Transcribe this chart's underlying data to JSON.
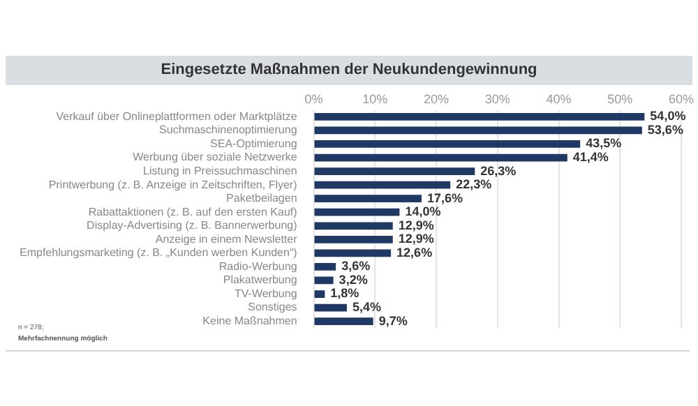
{
  "chart_data": {
    "type": "bar",
    "orientation": "horizontal",
    "title": "Eingesetzte Maßnahmen der Neukundengewinnung",
    "categories": [
      "Verkauf über Onlineplattformen oder Marktplätze",
      "Suchmaschinenoptimierung",
      "SEA-Optimierung",
      "Werbung über soziale Netzwerke",
      "Listung in Preissuchmaschinen",
      "Printwerbung (z. B. Anzeige in Zeitschriften, Flyer)",
      "Paketbeilagen",
      "Rabattaktionen (z. B. auf den ersten Kauf)",
      "Display-Advertising (z. B. Bannerwerbung)",
      "Anzeige in einem Newsletter",
      "Empfehlungsmarketing (z. B. „Kunden werben Kunden“)",
      "Radio-Werbung",
      "Plakatwerbung",
      "TV-Werbung",
      "Sonstiges",
      "Keine Maßnahmen"
    ],
    "values": [
      54.0,
      53.6,
      43.5,
      41.4,
      26.3,
      22.3,
      17.6,
      14.0,
      12.9,
      12.9,
      12.6,
      3.6,
      3.2,
      1.8,
      5.4,
      9.7
    ],
    "value_labels": [
      "54,0%",
      "53,6%",
      "43,5%",
      "41,4%",
      "26,3%",
      "22,3%",
      "17,6%",
      "14,0%",
      "12,9%",
      "12,9%",
      "12,6%",
      "3,6%",
      "3,2%",
      "1,8%",
      "5,4%",
      "9,7%"
    ],
    "color": "#1f3864",
    "xlim": [
      0,
      60
    ],
    "xticks": [
      {
        "value": 0,
        "label": "0%"
      },
      {
        "value": 10,
        "label": "10%"
      },
      {
        "value": 20,
        "label": "20%"
      },
      {
        "value": 30,
        "label": "30%"
      },
      {
        "value": 40,
        "label": "40%"
      },
      {
        "value": 50,
        "label": "50%"
      },
      {
        "value": 60,
        "label": "60%"
      }
    ],
    "grid": "x",
    "legend": false,
    "annotations": [
      "n = 278;",
      "Mehrfachnennung möglich"
    ]
  }
}
